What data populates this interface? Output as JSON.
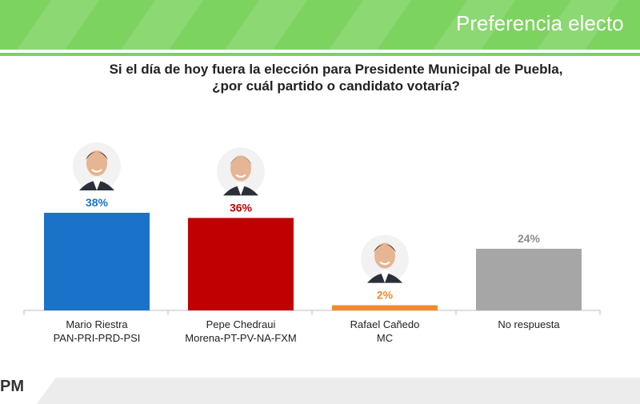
{
  "header": {
    "title": "Preferencia electo",
    "color": "#7dd35f"
  },
  "question": {
    "line1": "Si el día de hoy fuera la elección para Presidente Municipal de Puebla,",
    "line2": "¿por cuál partido o candidato votaría?"
  },
  "chart_data": {
    "type": "bar",
    "categories": [
      [
        "Mario Riestra",
        "PAN-PRI-PRD-PSI"
      ],
      [
        "Pepe Chedraui",
        "Morena-PT-PV-NA-FXM"
      ],
      [
        "Rafael Cañedo",
        "MC"
      ],
      [
        "No respuesta",
        ""
      ]
    ],
    "values": [
      38,
      36,
      2,
      24
    ],
    "value_labels": [
      "38%",
      "36%",
      "2%",
      "24%"
    ],
    "colors": [
      "#1b72c9",
      "#c00000",
      "#f08a2c",
      "#a6a6a6"
    ],
    "label_colors": [
      "#1b72c9",
      "#c00000",
      "#f08a2c",
      "#8c8c8c"
    ],
    "has_photo": [
      true,
      true,
      true,
      false
    ],
    "ylim": [
      0,
      45
    ],
    "grid": false
  },
  "footer": {
    "logo": "PM"
  }
}
